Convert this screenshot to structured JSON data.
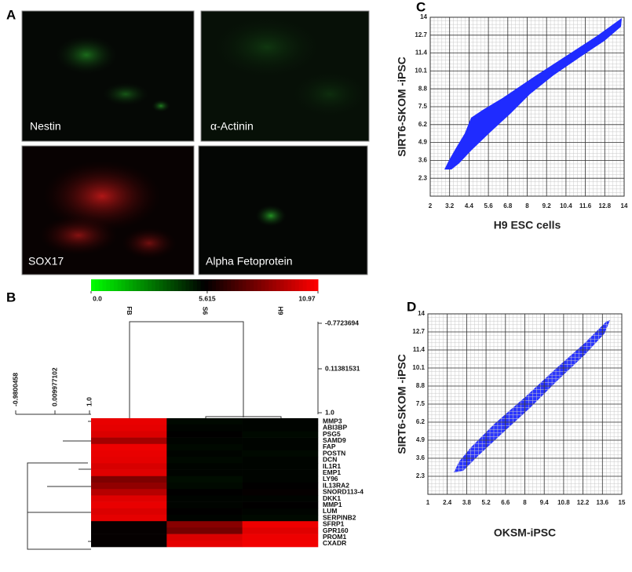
{
  "figure_a": {
    "label": "A",
    "images": [
      {
        "caption": "Nestin"
      },
      {
        "caption": "α-Actinin"
      },
      {
        "caption": "SOX17"
      },
      {
        "caption": "Alpha Fetoprotein"
      }
    ]
  },
  "chart_data": [
    {
      "type": "heatmap",
      "panel_label": "B",
      "columns": [
        "FB",
        "S6",
        "H9"
      ],
      "rows": [
        "MMP3",
        "ABI3BP",
        "PSG5",
        "SAMD9",
        "FAP",
        "POSTN",
        "DCN",
        "IL1R1",
        "EMP1",
        "LY96",
        "IL13RA2",
        "SNORD113-4",
        "DKK1",
        "MMP1",
        "LUM",
        "SERPINB2",
        "SFRP1",
        "GPR160",
        "PROM1",
        "CXADR"
      ],
      "values": [
        [
          10.5,
          5.3,
          5.4
        ],
        [
          10.4,
          5.4,
          5.4
        ],
        [
          10.2,
          5.5,
          5.3
        ],
        [
          9.0,
          5.4,
          5.4
        ],
        [
          10.6,
          5.3,
          5.4
        ],
        [
          10.5,
          5.4,
          5.3
        ],
        [
          10.4,
          5.3,
          5.4
        ],
        [
          10.1,
          5.4,
          5.4
        ],
        [
          10.3,
          5.4,
          5.4
        ],
        [
          8.2,
          5.2,
          5.4
        ],
        [
          8.6,
          5.3,
          5.5
        ],
        [
          9.4,
          5.5,
          5.6
        ],
        [
          10.3,
          5.4,
          5.4
        ],
        [
          10.5,
          5.4,
          5.5
        ],
        [
          10.2,
          5.5,
          5.4
        ],
        [
          10.4,
          5.4,
          5.3
        ],
        [
          5.6,
          8.4,
          10.6
        ],
        [
          5.6,
          8.0,
          10.3
        ],
        [
          5.6,
          10.2,
          10.6
        ],
        [
          5.6,
          10.4,
          10.7
        ]
      ],
      "colorscale": [
        "#00ff00",
        "#000000",
        "#ff0000"
      ],
      "zlim": [
        0,
        10.97
      ],
      "colorbar_ticks": [
        {
          "value": 0,
          "label": "0.0"
        },
        5.615,
        10.97
      ],
      "column_scale": [
        "-0.7723694",
        "0.11381531",
        "1.0"
      ],
      "row_scale": [
        "-0.9800458",
        "0.009977102",
        "1.0"
      ]
    },
    {
      "type": "scatter",
      "panel_label": "C",
      "x_label": "H9 ESC cells",
      "y_label": "SIRT6-SKOM -iPSC",
      "color": "#1f2bff",
      "grid": true,
      "xlim": [
        2,
        14
      ],
      "ylim": [
        1,
        14
      ],
      "xticks": [
        2,
        3.2,
        4.4,
        5.6,
        6.8,
        8,
        9.2,
        10.4,
        11.6,
        12.8,
        14
      ],
      "yticks": [
        2.3,
        3.6,
        4.9,
        6.2,
        7.5,
        8.8,
        10.1,
        11.4,
        12.7,
        14
      ]
    },
    {
      "type": "scatter",
      "panel_label": "D",
      "x_label": "OKSM-iPSC",
      "y_label": "SIRT6-SKOM -iPSC",
      "color": "#1f2bff",
      "grid": true,
      "xlim": [
        1,
        15
      ],
      "ylim": [
        1,
        14
      ],
      "xticks": [
        1,
        2.4,
        3.8,
        5.2,
        6.6,
        8,
        9.4,
        10.8,
        12.2,
        13.6,
        15
      ],
      "yticks": [
        2.3,
        3.6,
        4.9,
        6.2,
        7.5,
        8.8,
        10.1,
        11.4,
        12.7,
        14
      ]
    }
  ]
}
